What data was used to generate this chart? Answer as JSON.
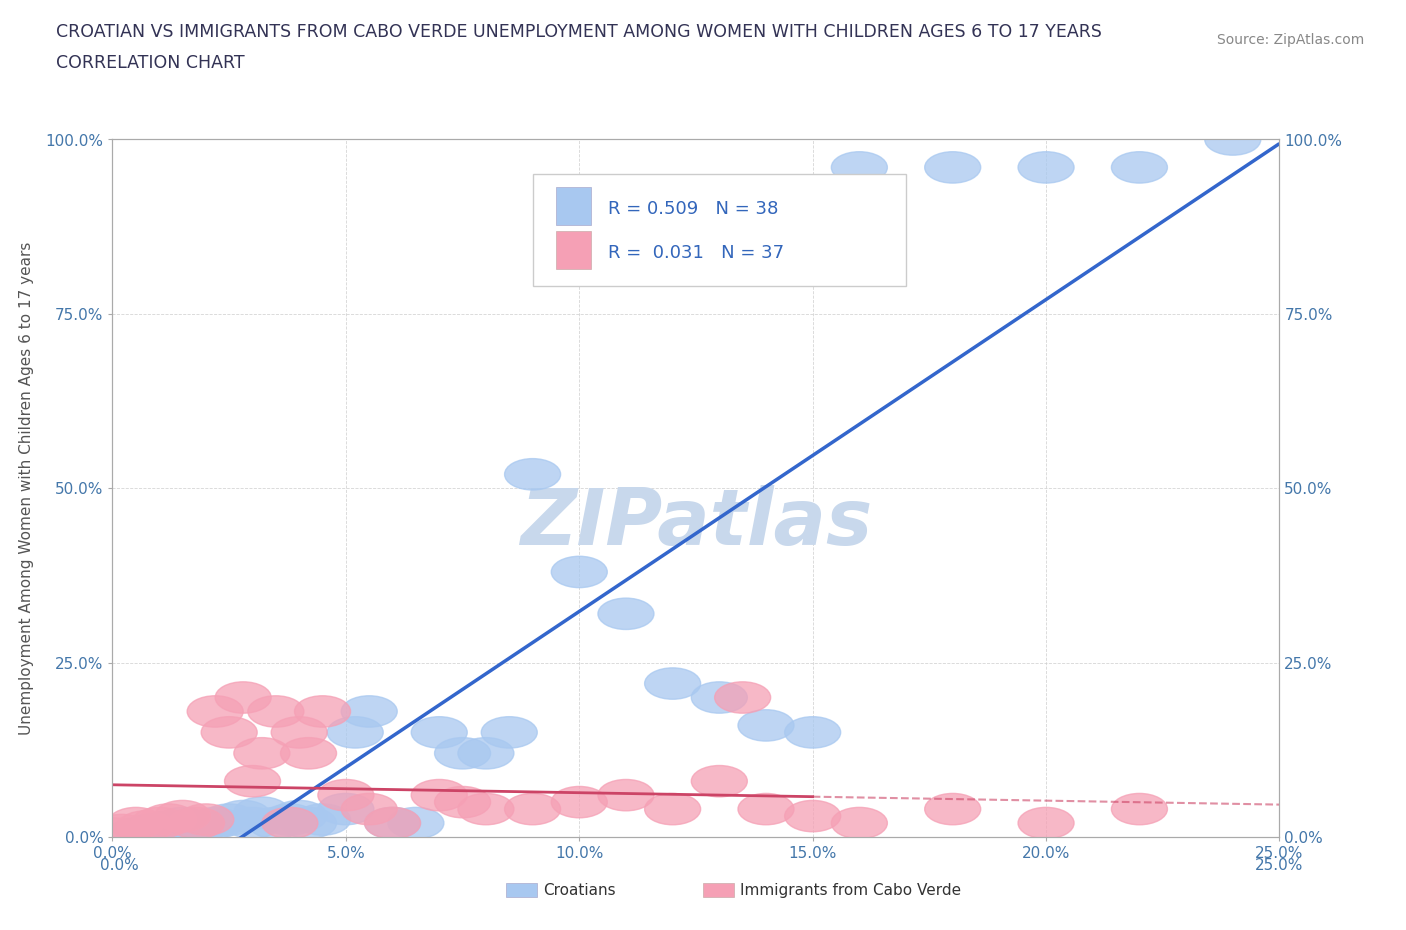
{
  "title_line1": "CROATIAN VS IMMIGRANTS FROM CABO VERDE UNEMPLOYMENT AMONG WOMEN WITH CHILDREN AGES 6 TO 17 YEARS",
  "title_line2": "CORRELATION CHART",
  "source_text": "Source: ZipAtlas.com",
  "ylabel": "Unemployment Among Women with Children Ages 6 to 17 years",
  "xlim": [
    0.0,
    0.25
  ],
  "ylim": [
    0.0,
    1.0
  ],
  "xtick_labels": [
    "0.0%",
    "5.0%",
    "10.0%",
    "15.0%",
    "20.0%",
    "25.0%"
  ],
  "xtick_values": [
    0.0,
    0.05,
    0.1,
    0.15,
    0.2,
    0.25
  ],
  "ytick_labels": [
    "0.0%",
    "25.0%",
    "50.0%",
    "75.0%",
    "100.0%"
  ],
  "ytick_values": [
    0.0,
    0.25,
    0.5,
    0.75,
    1.0
  ],
  "croatians_x": [
    0.005,
    0.008,
    0.01,
    0.012,
    0.015,
    0.018,
    0.02,
    0.022,
    0.025,
    0.028,
    0.03,
    0.032,
    0.035,
    0.038,
    0.04,
    0.042,
    0.045,
    0.05,
    0.052,
    0.055,
    0.06,
    0.065,
    0.07,
    0.075,
    0.08,
    0.085,
    0.09,
    0.1,
    0.11,
    0.12,
    0.13,
    0.14,
    0.15,
    0.16,
    0.18,
    0.2,
    0.22,
    0.24
  ],
  "croatians_y": [
    0.005,
    0.01,
    0.008,
    0.015,
    0.02,
    0.01,
    0.015,
    0.02,
    0.025,
    0.03,
    0.02,
    0.035,
    0.02,
    0.025,
    0.03,
    0.02,
    0.025,
    0.04,
    0.15,
    0.18,
    0.02,
    0.02,
    0.15,
    0.12,
    0.12,
    0.15,
    0.52,
    0.38,
    0.32,
    0.22,
    0.2,
    0.16,
    0.15,
    0.96,
    0.96,
    0.96,
    0.96,
    1.0
  ],
  "cabo_verde_x": [
    0.0,
    0.002,
    0.005,
    0.007,
    0.01,
    0.012,
    0.015,
    0.018,
    0.02,
    0.022,
    0.025,
    0.028,
    0.03,
    0.032,
    0.035,
    0.038,
    0.04,
    0.042,
    0.045,
    0.05,
    0.055,
    0.06,
    0.07,
    0.075,
    0.08,
    0.09,
    0.1,
    0.11,
    0.12,
    0.13,
    0.135,
    0.14,
    0.15,
    0.16,
    0.18,
    0.2,
    0.22
  ],
  "cabo_verde_y": [
    0.005,
    0.01,
    0.02,
    0.015,
    0.02,
    0.025,
    0.03,
    0.02,
    0.025,
    0.18,
    0.15,
    0.2,
    0.08,
    0.12,
    0.18,
    0.02,
    0.15,
    0.12,
    0.18,
    0.06,
    0.04,
    0.02,
    0.06,
    0.05,
    0.04,
    0.04,
    0.05,
    0.06,
    0.04,
    0.08,
    0.2,
    0.04,
    0.03,
    0.02,
    0.04,
    0.02,
    0.04
  ],
  "croatian_color": "#a8c8f0",
  "cabo_verde_color": "#f5a0b5",
  "croatian_line_color": "#3366cc",
  "cabo_verde_line_color": "#cc4466",
  "cabo_verde_line_dash_color": "#e090a8",
  "R_croatian": 0.509,
  "N_croatian": 38,
  "R_cabo_verde": 0.031,
  "N_cabo_verde": 37,
  "watermark": "ZIPatlas",
  "watermark_color": "#c8d8ec",
  "background_color": "#ffffff",
  "grid_color": "#cccccc",
  "title_color": "#333355",
  "axis_label_color": "#555555",
  "tick_color": "#4477aa",
  "legend_R_color": "#3366bb"
}
